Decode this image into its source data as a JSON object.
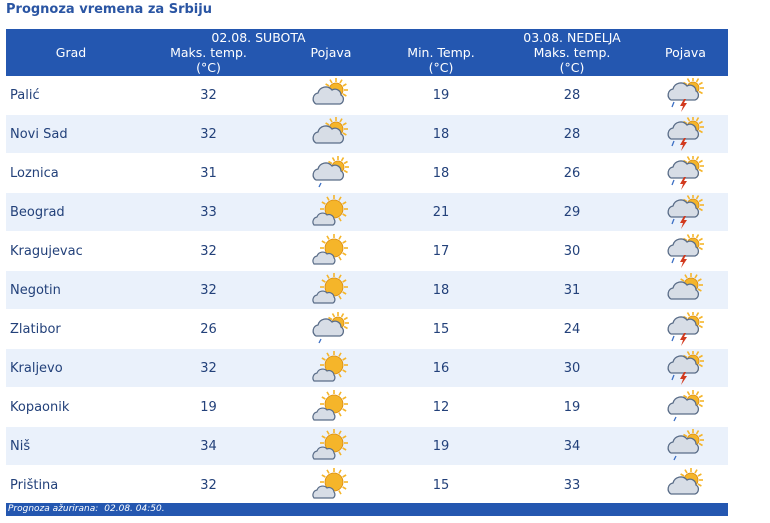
{
  "title": "Prognoza vremena za Srbiju",
  "header": {
    "city": "Grad",
    "day1": "02.08. SUBOTA",
    "day2": "03.08. NEDELJA",
    "max_temp": "Maks. temp.",
    "min_temp": "Min. Temp.",
    "unit": "(°C)",
    "phenomenon": "Pojava"
  },
  "rows": [
    {
      "city": "Palić",
      "d1_max": "32",
      "d1_icon": "sun-cloud-icon",
      "d2_min": "19",
      "d2_max": "28",
      "d2_icon": "thunderstorm-icon"
    },
    {
      "city": "Novi Sad",
      "d1_max": "32",
      "d1_icon": "sun-cloud-icon",
      "d2_min": "18",
      "d2_max": "28",
      "d2_icon": "thunderstorm-icon"
    },
    {
      "city": "Loznica",
      "d1_max": "31",
      "d1_icon": "rain-sun-cloud-icon",
      "d2_min": "18",
      "d2_max": "26",
      "d2_icon": "thunderstorm-icon"
    },
    {
      "city": "Beograd",
      "d1_max": "33",
      "d1_icon": "sunny-cloud-icon",
      "d2_min": "21",
      "d2_max": "29",
      "d2_icon": "thunderstorm-icon"
    },
    {
      "city": "Kragujevac",
      "d1_max": "32",
      "d1_icon": "sunny-cloud-icon",
      "d2_min": "17",
      "d2_max": "30",
      "d2_icon": "thunderstorm-icon"
    },
    {
      "city": "Negotin",
      "d1_max": "32",
      "d1_icon": "sunny-cloud-icon",
      "d2_min": "18",
      "d2_max": "31",
      "d2_icon": "sun-cloud-icon"
    },
    {
      "city": "Zlatibor",
      "d1_max": "26",
      "d1_icon": "rain-sun-cloud-icon",
      "d2_min": "15",
      "d2_max": "24",
      "d2_icon": "thunderstorm-icon"
    },
    {
      "city": "Kraljevo",
      "d1_max": "32",
      "d1_icon": "sunny-cloud-icon",
      "d2_min": "16",
      "d2_max": "30",
      "d2_icon": "thunderstorm-icon"
    },
    {
      "city": "Kopaonik",
      "d1_max": "19",
      "d1_icon": "sunny-cloud-icon",
      "d2_min": "12",
      "d2_max": "19",
      "d2_icon": "rain-sun-cloud-icon"
    },
    {
      "city": "Niš",
      "d1_max": "34",
      "d1_icon": "sunny-cloud-icon",
      "d2_min": "19",
      "d2_max": "34",
      "d2_icon": "rain-sun-cloud-icon"
    },
    {
      "city": "Priština",
      "d1_max": "32",
      "d1_icon": "sunny-cloud-icon",
      "d2_min": "15",
      "d2_max": "33",
      "d2_icon": "sun-cloud-icon"
    }
  ],
  "footer": {
    "label": "Prognoza ažurirana:",
    "value": "02.08. 04:50."
  },
  "colors": {
    "header_bg": "#2457b0",
    "title": "#2a55a3",
    "text": "#23417a",
    "row_alt": "#eaf1fb",
    "sun": "#f5b52a",
    "cloud": "#d7dde6",
    "lightning": "#d23a1e"
  }
}
